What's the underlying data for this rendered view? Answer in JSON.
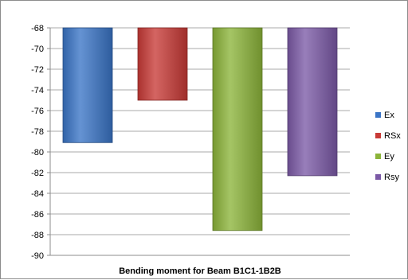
{
  "chart_data": {
    "type": "bar",
    "xlabel": "Bending moment for Beam B1C1-1B2B",
    "ylim": [
      -90,
      -68
    ],
    "yticks": [
      -68,
      -70,
      -72,
      -74,
      -76,
      -78,
      -80,
      -82,
      -84,
      -86,
      -88,
      -90
    ],
    "grid": true,
    "legend_position": "right",
    "series": [
      {
        "name": "Ex",
        "value": -79.1,
        "color": "#3a74c6"
      },
      {
        "name": "RSx",
        "value": -75.0,
        "color": "#c83a36"
      },
      {
        "name": "Ey",
        "value": -87.6,
        "color": "#8cb43a"
      },
      {
        "name": "Rsy",
        "value": -82.3,
        "color": "#7b59a6"
      }
    ]
  }
}
